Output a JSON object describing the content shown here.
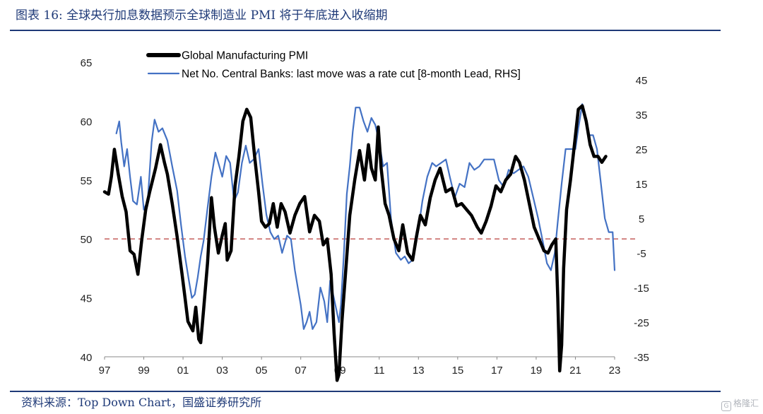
{
  "header": {
    "title": "图表 16:  全球央行加息数据预示全球制造业 PMI 将于年底进入收缩期"
  },
  "footer": {
    "source": "资料来源：Top Down Chart，国盛证券研究所",
    "watermark": "格隆汇"
  },
  "colors": {
    "pmi": "#000000",
    "banks": "#4472c4",
    "reference": "#c0504d",
    "title": "#1f3a78"
  },
  "chart_data": {
    "type": "line",
    "title": "",
    "xlabel": "",
    "ylabel": "",
    "x_range": [
      1997.0,
      2023.0
    ],
    "x_ticks": [
      "97",
      "99",
      "01",
      "03",
      "05",
      "07",
      "09",
      "11",
      "13",
      "15",
      "17",
      "19",
      "21",
      "23"
    ],
    "x_tick_values": [
      1997,
      1999,
      2001,
      2003,
      2005,
      2007,
      2009,
      2011,
      2013,
      2015,
      2017,
      2019,
      2021,
      2023
    ],
    "left_axis": {
      "ylim": [
        40,
        65
      ],
      "ticks": [
        "40",
        "45",
        "50",
        "55",
        "60",
        "65"
      ],
      "tick_values": [
        40,
        45,
        50,
        55,
        60,
        65
      ]
    },
    "right_axis": {
      "ylim": [
        -35,
        45
      ],
      "ticks": [
        "-35",
        "-25",
        "-15",
        "-5",
        "5",
        "15",
        "25",
        "35",
        "45"
      ],
      "tick_values": [
        -35,
        -25,
        -15,
        -5,
        5,
        15,
        25,
        35,
        45
      ]
    },
    "reference_line": {
      "axis": "left",
      "value": 50,
      "style": "dashed"
    },
    "legend": {
      "position": "top",
      "entries": [
        "Global Manufacturing PMI",
        "Net No. Central Banks: last move was a rate cut  [8-month Lead, RHS]"
      ]
    },
    "series": [
      {
        "name": "Global Manufacturing PMI",
        "axis": "left",
        "x": [
          1997.0,
          1997.2,
          1997.35,
          1997.5,
          1997.7,
          1997.9,
          1998.1,
          1998.3,
          1998.5,
          1998.7,
          1998.9,
          1999.1,
          1999.3,
          1999.6,
          1999.85,
          2000.05,
          2000.2,
          2000.45,
          2000.7,
          2000.95,
          2001.1,
          2001.25,
          2001.5,
          2001.65,
          2001.8,
          2001.9,
          2002.05,
          2002.25,
          2002.45,
          2002.6,
          2002.8,
          2003.0,
          2003.15,
          2003.25,
          2003.45,
          2003.65,
          2003.85,
          2004.05,
          2004.25,
          2004.45,
          2004.65,
          2004.85,
          2005.0,
          2005.2,
          2005.4,
          2005.6,
          2005.8,
          2006.0,
          2006.2,
          2006.45,
          2006.7,
          2006.95,
          2007.2,
          2007.45,
          2007.7,
          2007.95,
          2008.15,
          2008.35,
          2008.55,
          2008.7,
          2008.85,
          2008.95,
          2009.1,
          2009.3,
          2009.5,
          2009.75,
          2010.0,
          2010.25,
          2010.45,
          2010.6,
          2010.8,
          2010.95,
          2011.1,
          2011.3,
          2011.5,
          2011.75,
          2012.0,
          2012.2,
          2012.45,
          2012.7,
          2012.9,
          2013.1,
          2013.35,
          2013.6,
          2013.85,
          2014.1,
          2014.4,
          2014.7,
          2014.95,
          2015.2,
          2015.45,
          2015.7,
          2016.0,
          2016.2,
          2016.45,
          2016.7,
          2016.95,
          2017.2,
          2017.45,
          2017.7,
          2017.95,
          2018.15,
          2018.4,
          2018.65,
          2018.9,
          2019.15,
          2019.4,
          2019.6,
          2019.8,
          2020.0,
          2020.1,
          2020.2,
          2020.3,
          2020.4,
          2020.55,
          2020.75,
          2020.95,
          2021.15,
          2021.35,
          2021.55,
          2021.75,
          2021.95,
          2022.15,
          2022.35,
          2022.55
        ],
        "values": [
          54.0,
          53.8,
          55.3,
          57.6,
          55.5,
          53.6,
          52.3,
          49.0,
          48.7,
          47.0,
          50.0,
          52.5,
          54.0,
          56.0,
          58.0,
          56.5,
          55.5,
          53.0,
          50.2,
          47.0,
          45.0,
          43.0,
          42.2,
          44.2,
          41.5,
          41.2,
          44.0,
          48.0,
          53.5,
          51.0,
          48.8,
          50.3,
          51.3,
          48.2,
          49.0,
          54.5,
          57.0,
          60.0,
          61.0,
          60.3,
          57.0,
          54.0,
          51.5,
          51.0,
          51.3,
          53.0,
          51.0,
          53.0,
          52.3,
          50.5,
          52.0,
          53.0,
          53.6,
          50.6,
          52.0,
          51.5,
          49.5,
          50.0,
          47.0,
          42.0,
          38.0,
          38.5,
          43.0,
          47.5,
          52.0,
          55.0,
          57.5,
          55.0,
          58.0,
          56.0,
          55.0,
          59.5,
          56.0,
          53.0,
          52.0,
          50.0,
          49.0,
          51.2,
          48.8,
          48.2,
          50.2,
          52.0,
          51.2,
          53.5,
          55.0,
          56.0,
          54.0,
          54.3,
          52.8,
          53.0,
          52.5,
          52.0,
          51.0,
          50.5,
          51.5,
          52.8,
          54.5,
          54.0,
          55.0,
          55.5,
          57.0,
          56.5,
          55.0,
          53.0,
          51.0,
          50.0,
          49.0,
          48.8,
          49.5,
          50.0,
          45.0,
          38.8,
          41.0,
          47.5,
          52.5,
          55.0,
          58.0,
          61.0,
          61.3,
          60.0,
          58.0,
          57.0,
          57.0,
          56.5,
          57.0
        ],
        "legend_swatch": "thick"
      },
      {
        "name": "Net No. Central Banks: last move was a rate cut  [8-month Lead, RHS]",
        "axis": "right",
        "x": [
          1997.6,
          1997.75,
          1997.85,
          1998.0,
          1998.15,
          1998.3,
          1998.45,
          1998.65,
          1998.85,
          1999.0,
          1999.2,
          1999.4,
          1999.55,
          1999.75,
          1999.95,
          2000.2,
          2000.45,
          2000.7,
          2000.9,
          2001.1,
          2001.3,
          2001.45,
          2001.6,
          2001.75,
          2001.9,
          2002.05,
          2002.25,
          2002.45,
          2002.65,
          2002.8,
          2003.0,
          2003.2,
          2003.4,
          2003.6,
          2003.8,
          2004.0,
          2004.2,
          2004.4,
          2004.6,
          2004.85,
          2005.05,
          2005.25,
          2005.45,
          2005.65,
          2005.85,
          2006.05,
          2006.3,
          2006.5,
          2006.7,
          2006.85,
          2007.0,
          2007.15,
          2007.3,
          2007.45,
          2007.6,
          2007.8,
          2008.0,
          2008.2,
          2008.35,
          2008.5,
          2008.65,
          2008.8,
          2008.95,
          2009.05,
          2009.2,
          2009.35,
          2009.5,
          2009.65,
          2009.8,
          2010.0,
          2010.2,
          2010.4,
          2010.6,
          2010.8,
          2011.0,
          2011.2,
          2011.4,
          2011.6,
          2011.85,
          2012.1,
          2012.3,
          2012.5,
          2012.7,
          2012.95,
          2013.2,
          2013.45,
          2013.7,
          2013.9,
          2014.15,
          2014.4,
          2014.6,
          2014.85,
          2015.1,
          2015.35,
          2015.6,
          2015.85,
          2016.1,
          2016.35,
          2016.6,
          2016.85,
          2017.1,
          2017.35,
          2017.6,
          2017.85,
          2018.1,
          2018.35,
          2018.6,
          2018.85,
          2019.1,
          2019.35,
          2019.55,
          2019.75,
          2019.95,
          2020.1,
          2020.3,
          2020.5,
          2020.7,
          2020.85,
          2021.0,
          2021.15,
          2021.35,
          2021.5,
          2021.7,
          2021.9,
          2022.1,
          2022.3,
          2022.5,
          2022.7,
          2022.9,
          2023.0
        ],
        "values": [
          29.5,
          33.0,
          27.0,
          20.0,
          25.0,
          17.0,
          10.0,
          9.0,
          17.0,
          7.5,
          10.0,
          27.0,
          33.5,
          30.0,
          31.0,
          27.5,
          20.0,
          13.0,
          3.0,
          -6.0,
          -13.0,
          -18.0,
          -17.0,
          -12.0,
          -6.0,
          -1.5,
          8.0,
          17.0,
          24.0,
          21.0,
          17.0,
          23.0,
          21.0,
          10.0,
          12.5,
          21.0,
          26.0,
          21.0,
          22.0,
          25.0,
          15.0,
          6.0,
          1.0,
          -1.0,
          0.0,
          -5.0,
          0.0,
          -1.0,
          -10.0,
          -15.0,
          -20.0,
          -27.0,
          -25.0,
          -22.0,
          -27.0,
          -25.0,
          -15.0,
          -19.0,
          -25.0,
          -13.0,
          -17.0,
          -21.0,
          -25.0,
          -20.0,
          -5.0,
          12.0,
          20.0,
          30.0,
          37.0,
          37.0,
          33.0,
          30.0,
          34.0,
          32.0,
          27.0,
          20.0,
          21.0,
          5.0,
          -5.0,
          -7.0,
          -6.0,
          -8.0,
          -7.0,
          0.0,
          10.0,
          17.0,
          21.0,
          20.0,
          21.0,
          22.0,
          17.0,
          11.0,
          15.0,
          14.0,
          21.0,
          19.0,
          20.0,
          22.0,
          22.0,
          22.0,
          16.0,
          14.0,
          19.0,
          18.0,
          19.0,
          20.0,
          17.0,
          11.0,
          5.0,
          -2.0,
          -8.0,
          -10.0,
          -5.0,
          4.0,
          15.0,
          25.0,
          25.0,
          25.0,
          25.0,
          31.0,
          38.0,
          35.0,
          29.0,
          29.0,
          25.0,
          15.0,
          5.0,
          1.0,
          1.0,
          -10.0
        ],
        "legend_swatch": "thin"
      }
    ]
  }
}
